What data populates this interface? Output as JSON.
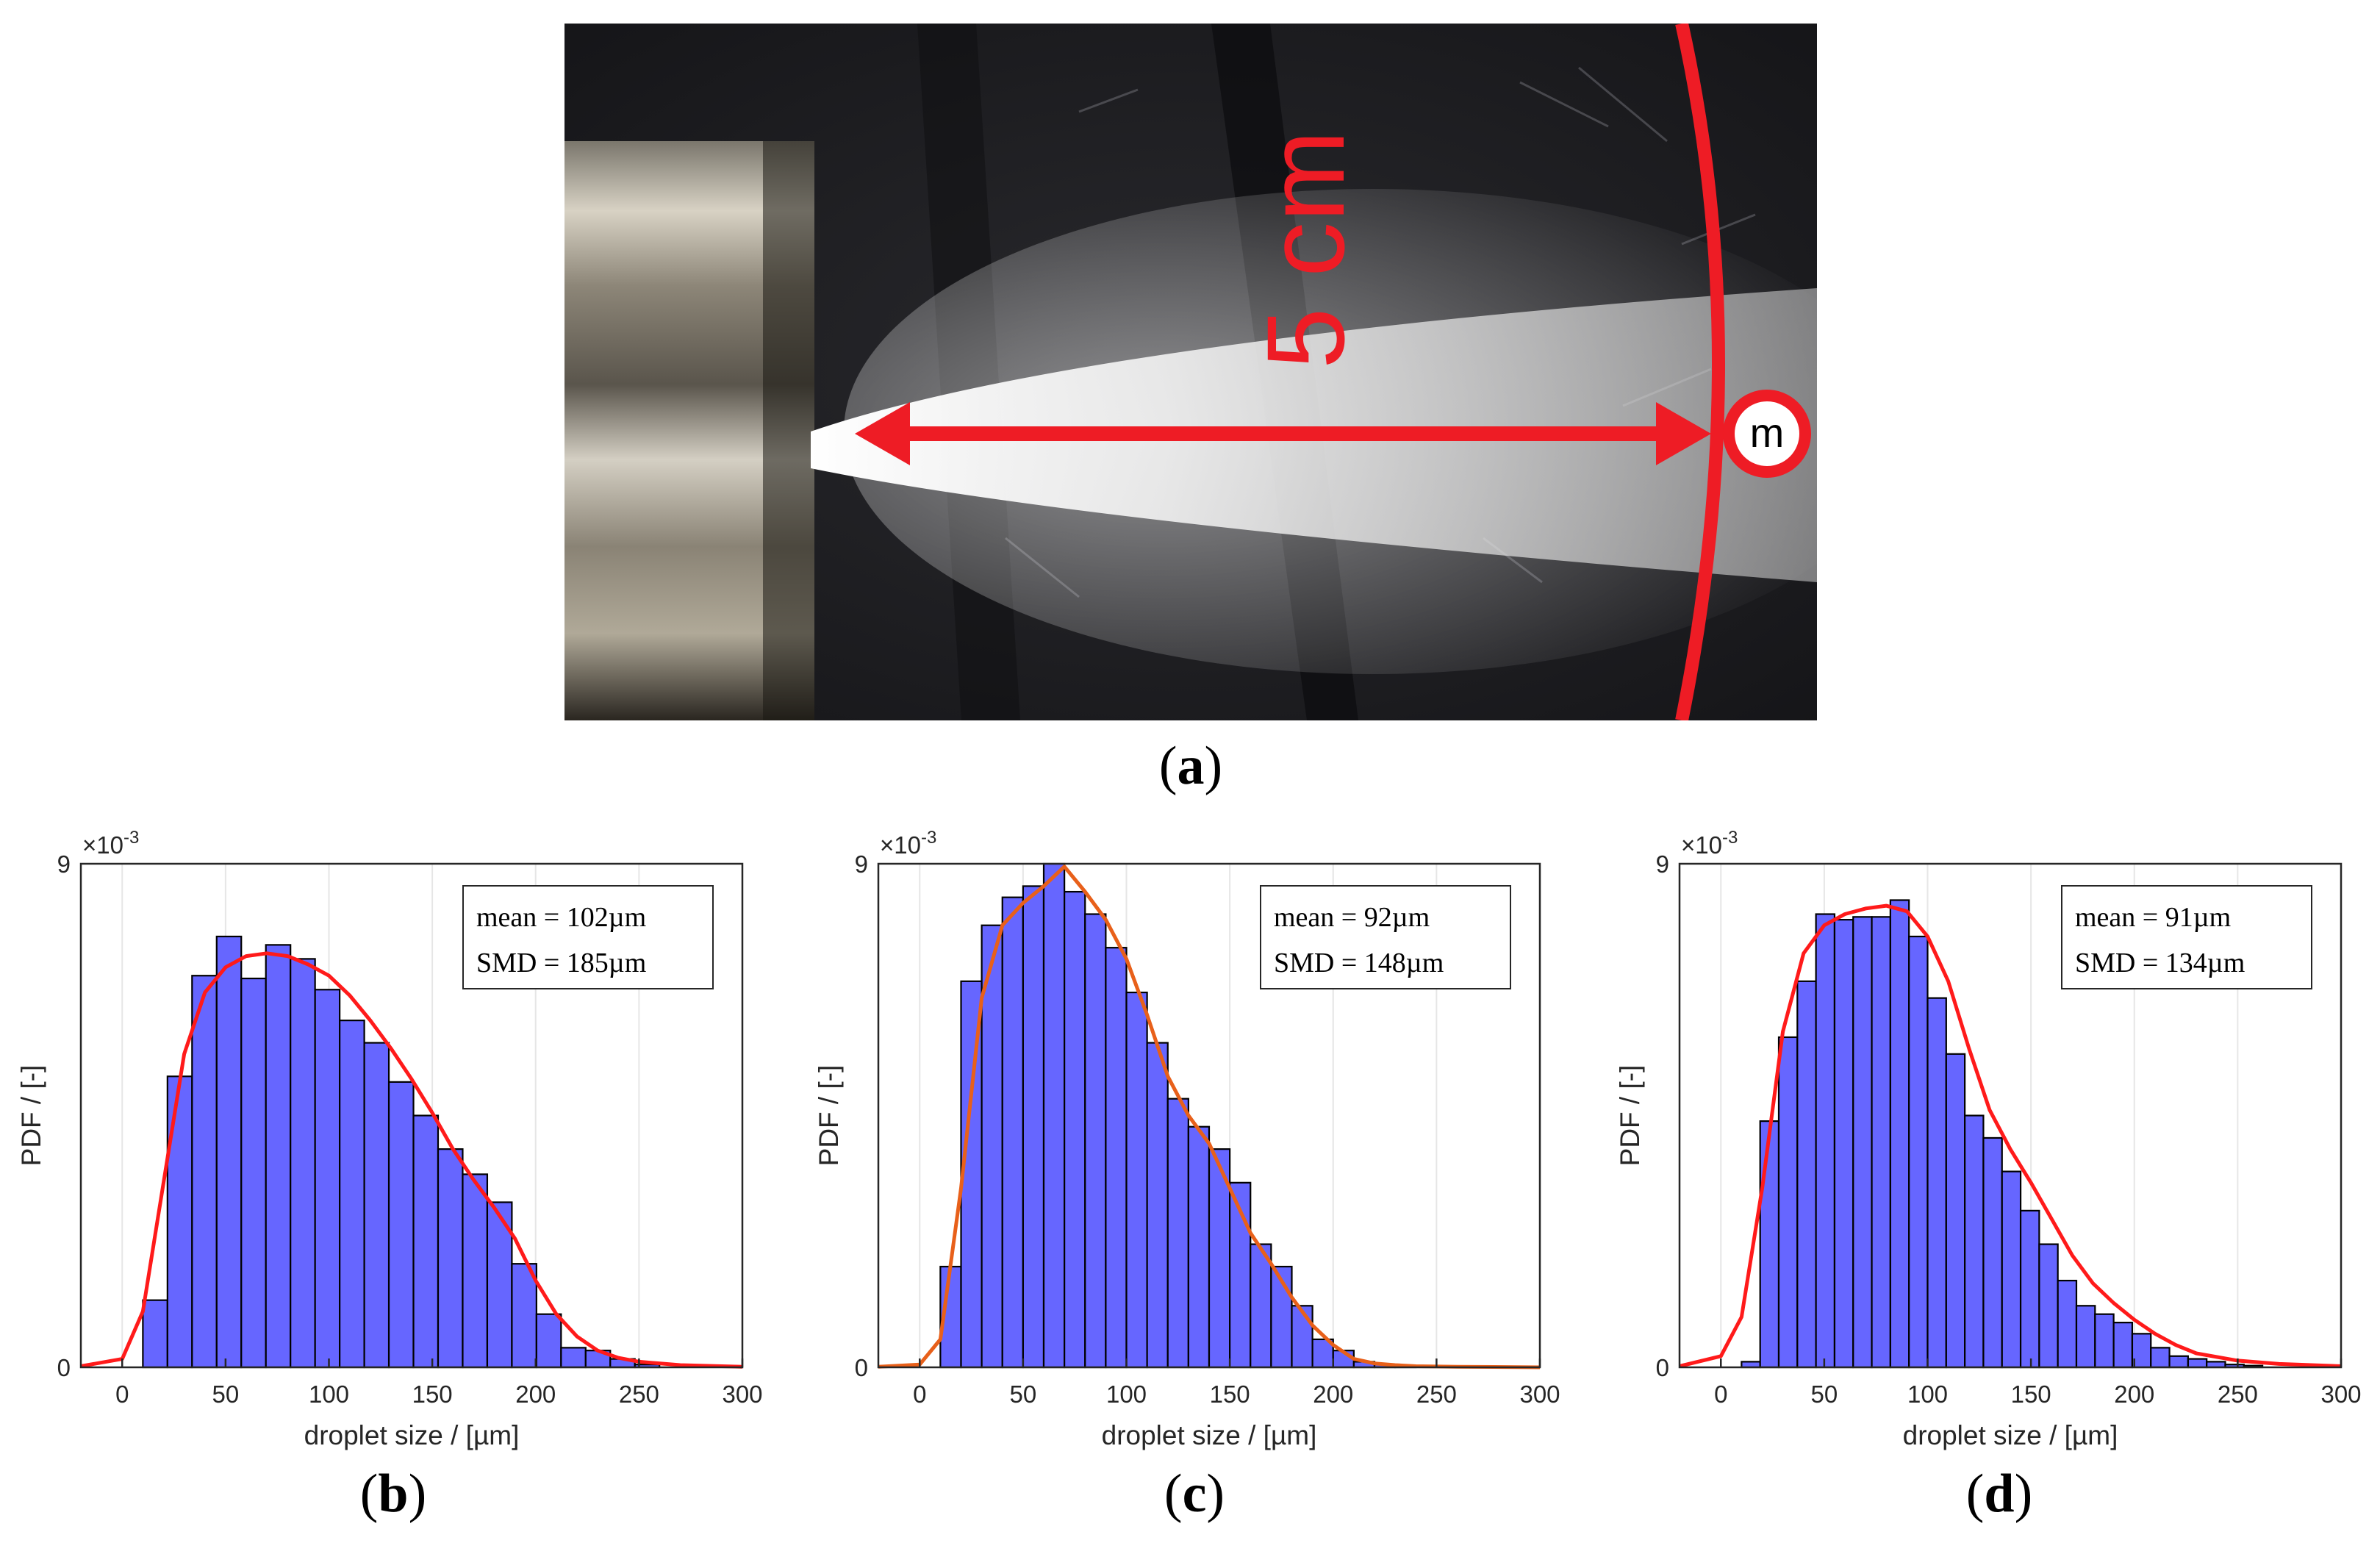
{
  "photo": {
    "distance_label": "5 cm",
    "marker_label": "m",
    "colors": {
      "annotation": "#ee1c25",
      "background": "#1e1e22",
      "nozzle": "#8a8275"
    }
  },
  "panels": {
    "a": "a",
    "b": "b",
    "c": "c",
    "d": "d"
  },
  "chart_data": [
    {
      "id": "b",
      "type": "bar",
      "xlabel": "droplet size / [µm]",
      "ylabel": "PDF / [-]",
      "y_exponent": "×10",
      "y_exponent_power": "-3",
      "xlim": [
        -20,
        300
      ],
      "ylim": [
        0,
        9
      ],
      "x_ticks": [
        "0",
        "50",
        "100",
        "150",
        "200",
        "250",
        "300"
      ],
      "x_tick_values": [
        0,
        50,
        100,
        150,
        200,
        250,
        300
      ],
      "y_ticks": [
        "0",
        "9"
      ],
      "y_tick_values": [
        0,
        9
      ],
      "grid": "vertical",
      "bin_width": 11.9,
      "bin_starts": [
        10,
        21.9,
        33.8,
        45.7,
        57.6,
        69.5,
        81.4,
        93.3,
        105.2,
        117.1,
        129,
        140.9,
        152.8,
        164.7,
        176.6,
        188.5,
        200.4,
        212.3,
        224.2,
        236.1,
        248
      ],
      "values": [
        1.2,
        5.2,
        7.0,
        7.7,
        6.95,
        7.55,
        7.3,
        6.75,
        6.2,
        5.8,
        5.1,
        4.5,
        3.9,
        3.45,
        2.95,
        1.85,
        0.95,
        0.35,
        0.3,
        0.15,
        0.05
      ],
      "series": [
        {
          "name": "",
          "color": "#6666ff"
        }
      ],
      "fit_color": "#ff1a1a",
      "fit": {
        "x": [
          -20,
          0,
          10,
          20,
          30,
          40,
          50,
          60,
          70,
          80,
          90,
          100,
          110,
          120,
          130,
          140,
          150,
          160,
          170,
          180,
          190,
          200,
          210,
          220,
          230,
          240,
          250,
          270,
          300
        ],
        "y": [
          0.02,
          0.15,
          1.0,
          3.3,
          5.6,
          6.7,
          7.15,
          7.35,
          7.4,
          7.35,
          7.2,
          7.0,
          6.65,
          6.2,
          5.7,
          5.15,
          4.55,
          3.9,
          3.35,
          2.85,
          2.3,
          1.55,
          0.95,
          0.55,
          0.3,
          0.17,
          0.1,
          0.04,
          0.01
        ]
      },
      "legend": {
        "position": "top-right",
        "lines": [
          "mean = 102µm",
          "SMD = 185µm"
        ]
      }
    },
    {
      "id": "c",
      "type": "bar",
      "xlabel": "droplet size / [µm]",
      "ylabel": "PDF / [-]",
      "y_exponent": "×10",
      "y_exponent_power": "-3",
      "xlim": [
        -20,
        300
      ],
      "ylim": [
        0,
        9
      ],
      "x_ticks": [
        "0",
        "50",
        "100",
        "150",
        "200",
        "250",
        "300"
      ],
      "x_tick_values": [
        0,
        50,
        100,
        150,
        200,
        250,
        300
      ],
      "y_ticks": [
        "0",
        "9"
      ],
      "y_tick_values": [
        0,
        9
      ],
      "grid": "vertical",
      "bin_width": 10,
      "bin_starts": [
        10,
        20,
        30,
        40,
        50,
        60,
        70,
        80,
        90,
        100,
        110,
        120,
        130,
        140,
        150,
        160,
        170,
        180,
        190,
        200,
        210,
        220,
        230
      ],
      "values": [
        1.8,
        6.9,
        7.9,
        8.4,
        8.6,
        9.0,
        8.5,
        8.1,
        7.5,
        6.7,
        5.8,
        4.8,
        4.3,
        3.9,
        3.3,
        2.2,
        1.8,
        1.1,
        0.5,
        0.3,
        0.1,
        0.05,
        0.02
      ],
      "series": [
        {
          "name": "",
          "color": "#6666ff"
        }
      ],
      "fit_color": "#e8601a",
      "fit": {
        "x": [
          -20,
          0,
          10,
          20,
          30,
          40,
          50,
          60,
          70,
          80,
          90,
          100,
          110,
          120,
          130,
          140,
          150,
          160,
          170,
          180,
          190,
          200,
          210,
          220,
          230,
          240,
          260,
          300
        ],
        "y": [
          0.01,
          0.05,
          0.5,
          3.2,
          6.6,
          7.9,
          8.3,
          8.6,
          8.95,
          8.5,
          8.0,
          7.3,
          6.3,
          5.2,
          4.5,
          4.0,
          3.2,
          2.4,
          1.85,
          1.25,
          0.75,
          0.4,
          0.15,
          0.07,
          0.04,
          0.02,
          0.01,
          0.0
        ]
      },
      "legend": {
        "position": "top-right",
        "lines": [
          "mean = 92µm",
          "SMD = 148µm"
        ]
      }
    },
    {
      "id": "d",
      "type": "bar",
      "xlabel": "droplet size / [µm]",
      "ylabel": "PDF / [-]",
      "y_exponent": "×10",
      "y_exponent_power": "-3",
      "xlim": [
        -20,
        300
      ],
      "ylim": [
        0,
        9
      ],
      "x_ticks": [
        "0",
        "50",
        "100",
        "150",
        "200",
        "250",
        "300"
      ],
      "x_tick_values": [
        0,
        50,
        100,
        150,
        200,
        250,
        300
      ],
      "y_ticks": [
        "0",
        "9"
      ],
      "y_tick_values": [
        0,
        9
      ],
      "grid": "vertical",
      "bin_width": 9,
      "bin_starts": [
        10,
        19,
        28,
        37,
        46,
        55,
        64,
        73,
        82,
        91,
        100,
        109,
        118,
        127,
        136,
        145,
        154,
        163,
        172,
        181,
        190,
        199,
        208,
        217,
        226,
        235,
        244,
        253
      ],
      "values": [
        0.1,
        4.4,
        5.9,
        6.9,
        8.1,
        8.0,
        8.05,
        8.05,
        8.35,
        7.7,
        6.6,
        5.6,
        4.5,
        4.1,
        3.5,
        2.8,
        2.2,
        1.55,
        1.1,
        0.95,
        0.8,
        0.6,
        0.35,
        0.2,
        0.15,
        0.1,
        0.05,
        0.03
      ],
      "series": [
        {
          "name": "",
          "color": "#6666ff"
        }
      ],
      "fit_color": "#ff1a1a",
      "fit": {
        "x": [
          -20,
          0,
          10,
          20,
          30,
          40,
          50,
          60,
          70,
          80,
          90,
          100,
          110,
          120,
          130,
          140,
          150,
          160,
          170,
          180,
          190,
          200,
          210,
          220,
          230,
          250,
          270,
          300
        ],
        "y": [
          0.02,
          0.2,
          0.9,
          3.2,
          6.0,
          7.4,
          7.9,
          8.1,
          8.2,
          8.25,
          8.15,
          7.7,
          6.9,
          5.7,
          4.6,
          3.9,
          3.3,
          2.65,
          2.0,
          1.5,
          1.15,
          0.85,
          0.6,
          0.4,
          0.25,
          0.12,
          0.06,
          0.02
        ]
      },
      "legend": {
        "position": "top-right",
        "lines": [
          "mean = 91µm",
          "SMD = 134µm"
        ]
      }
    }
  ]
}
